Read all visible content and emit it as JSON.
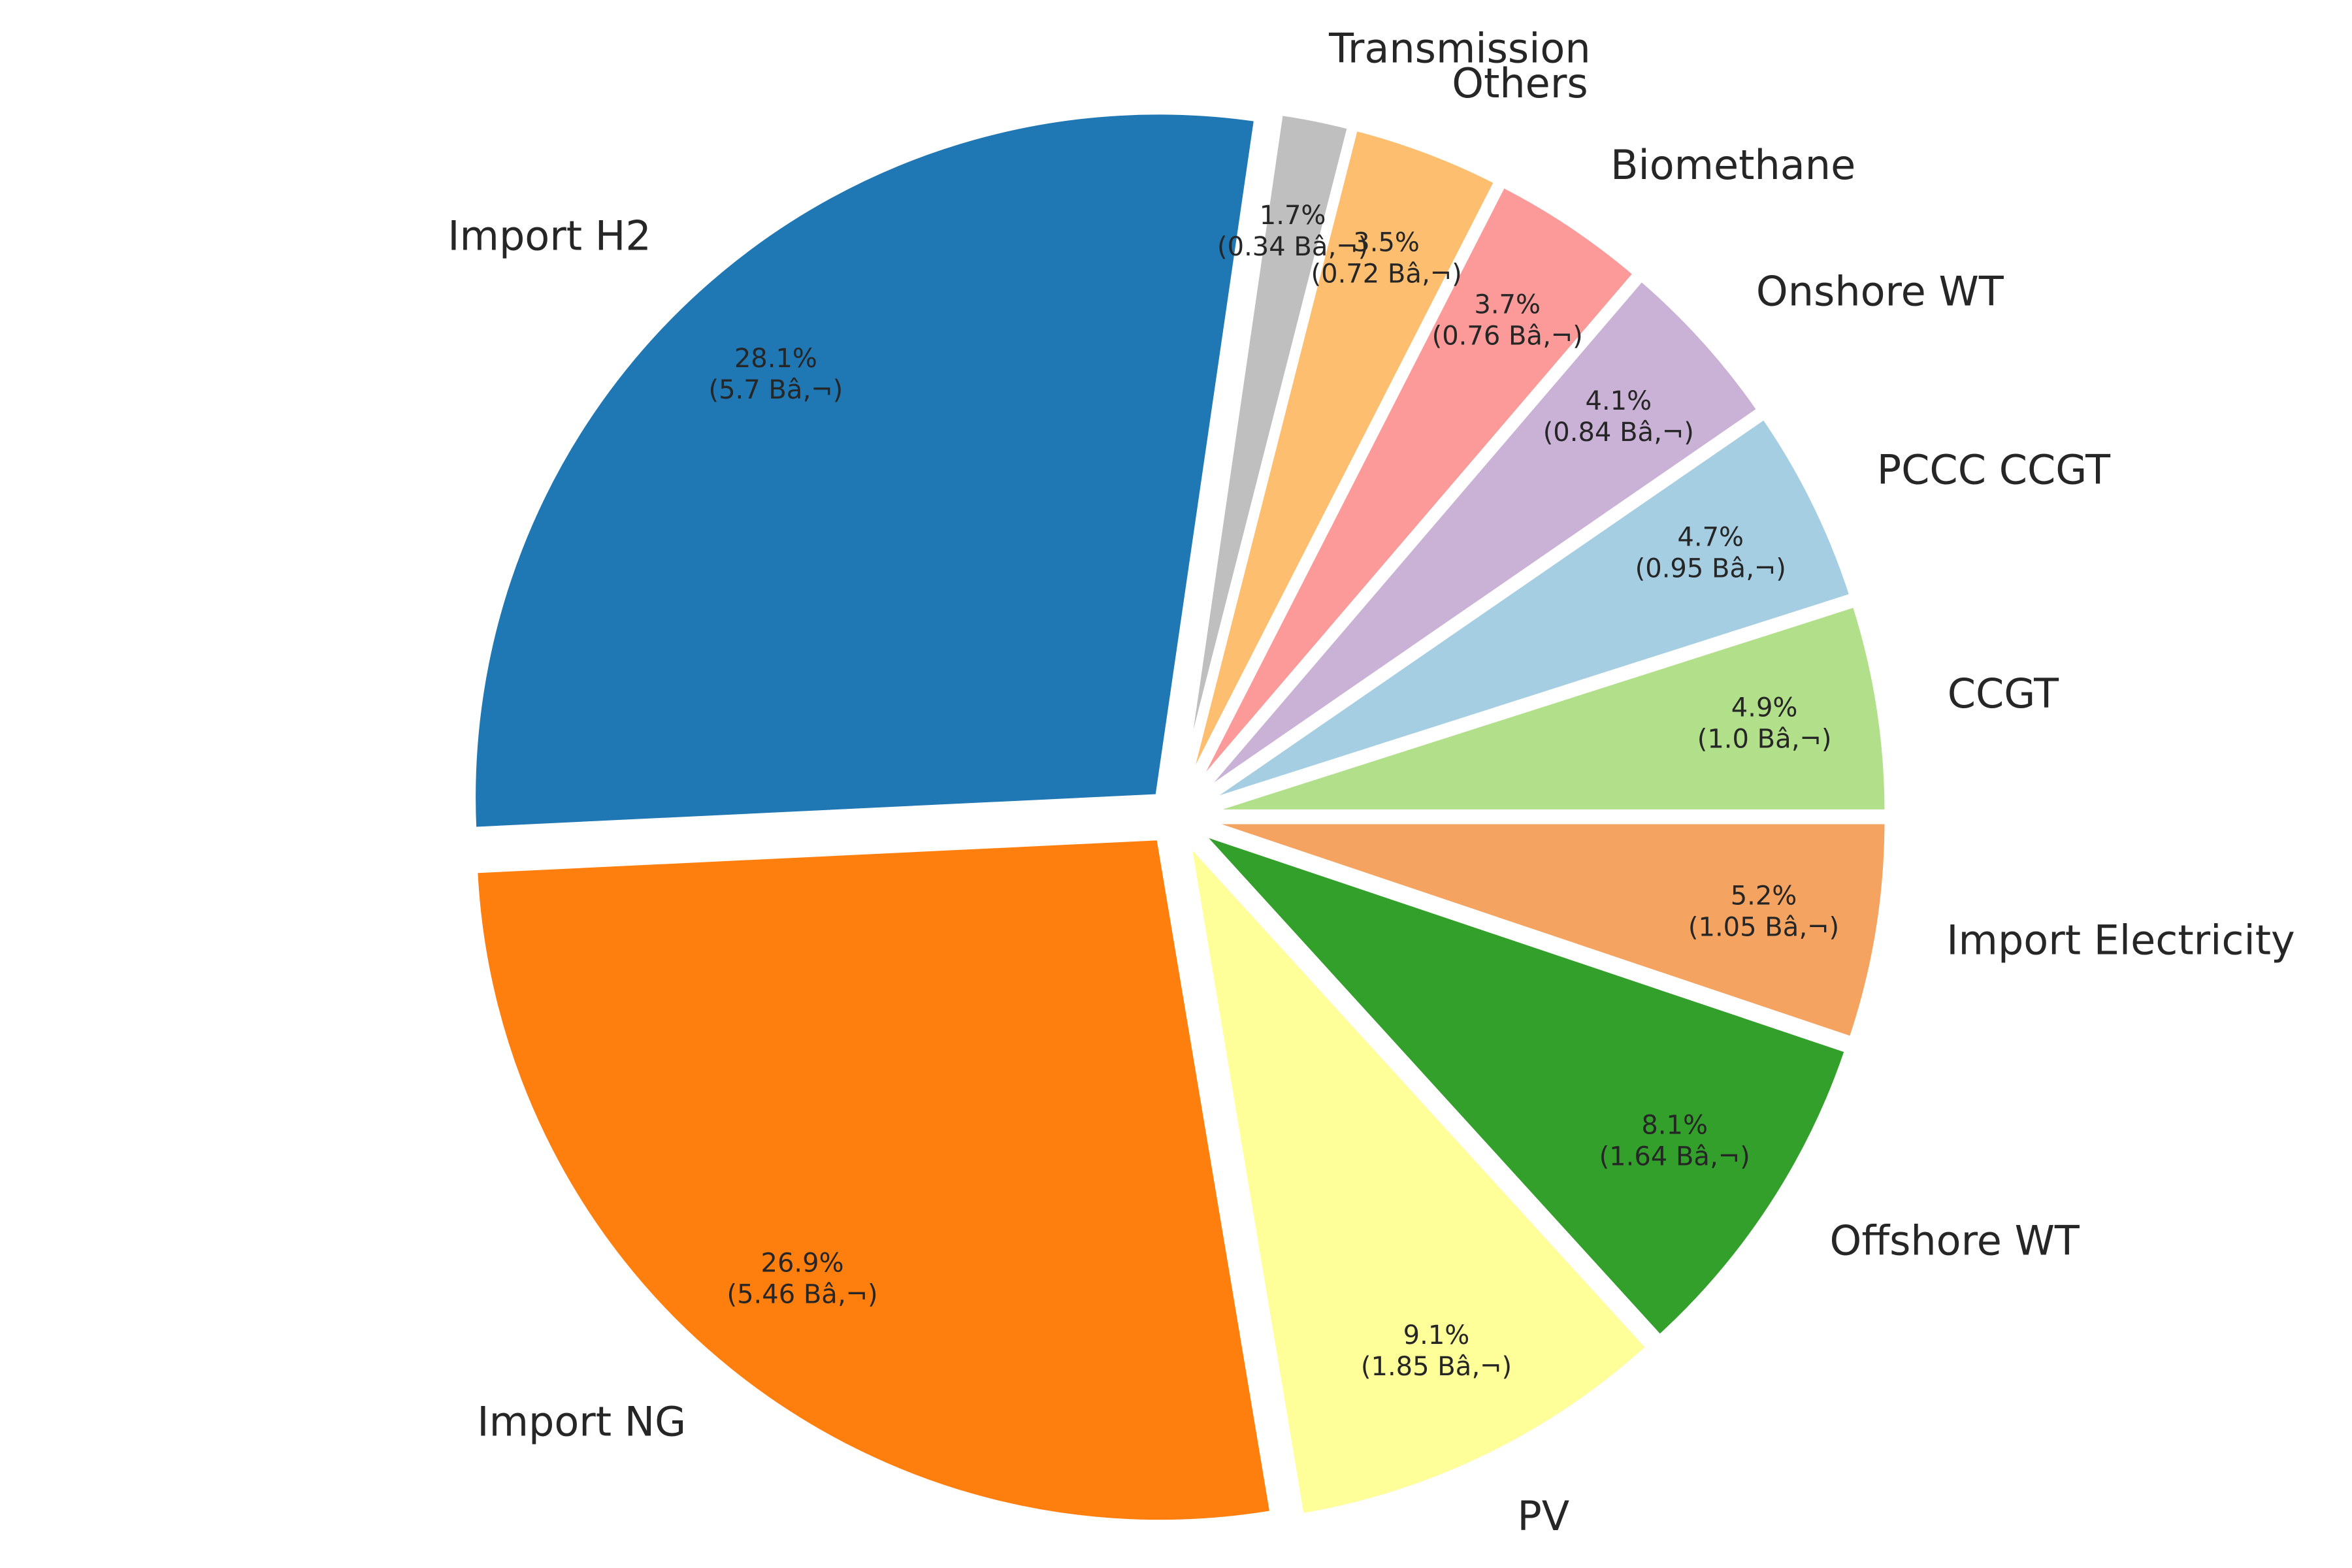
{
  "chart_data": {
    "type": "pie",
    "start_angle_deg": 0,
    "direction": "counterclockwise",
    "slices": [
      {
        "label": "CCGT",
        "percent_label": "4.9%",
        "value_label": "(1.0 Bâ‚¬)",
        "value": 1.0,
        "color": "#b2df8a"
      },
      {
        "label": "PCCC CCGT",
        "percent_label": "4.7%",
        "value_label": "(0.95 Bâ‚¬)",
        "value": 0.95,
        "color": "#a6cee3"
      },
      {
        "label": "Onshore WT",
        "percent_label": "4.1%",
        "value_label": "(0.84 Bâ‚¬)",
        "value": 0.84,
        "color": "#cab2d6"
      },
      {
        "label": "Biomethane",
        "percent_label": "3.7%",
        "value_label": "(0.76 Bâ‚¬)",
        "value": 0.76,
        "color": "#fb9a99"
      },
      {
        "label": "Others",
        "percent_label": "3.5%",
        "value_label": "(0.72 Bâ‚¬)",
        "value": 0.72,
        "color": "#fdbf6f"
      },
      {
        "label": "Transmission",
        "percent_label": "1.7%",
        "value_label": "(0.34 Bâ‚¬)",
        "value": 0.34,
        "color": "#bfbfbf"
      },
      {
        "label": "Import H2",
        "percent_label": "28.1%",
        "value_label": "(5.7 Bâ‚¬)",
        "value": 5.7,
        "color": "#1f77b4"
      },
      {
        "label": "Import NG",
        "percent_label": "26.9%",
        "value_label": "(5.46 Bâ‚¬)",
        "value": 5.46,
        "color": "#ff7f0e"
      },
      {
        "label": "PV",
        "percent_label": "9.1%",
        "value_label": "(1.85 Bâ‚¬)",
        "value": 1.85,
        "color": "#ffff99"
      },
      {
        "label": "Offshore WT",
        "percent_label": "8.1%",
        "value_label": "(1.64 Bâ‚¬)",
        "value": 1.64,
        "color": "#33a02c"
      },
      {
        "label": "Import Electricity",
        "percent_label": "5.2%",
        "value_label": "(1.05 Bâ‚¬)",
        "value": 1.05,
        "color": "#f4a460"
      }
    ]
  }
}
